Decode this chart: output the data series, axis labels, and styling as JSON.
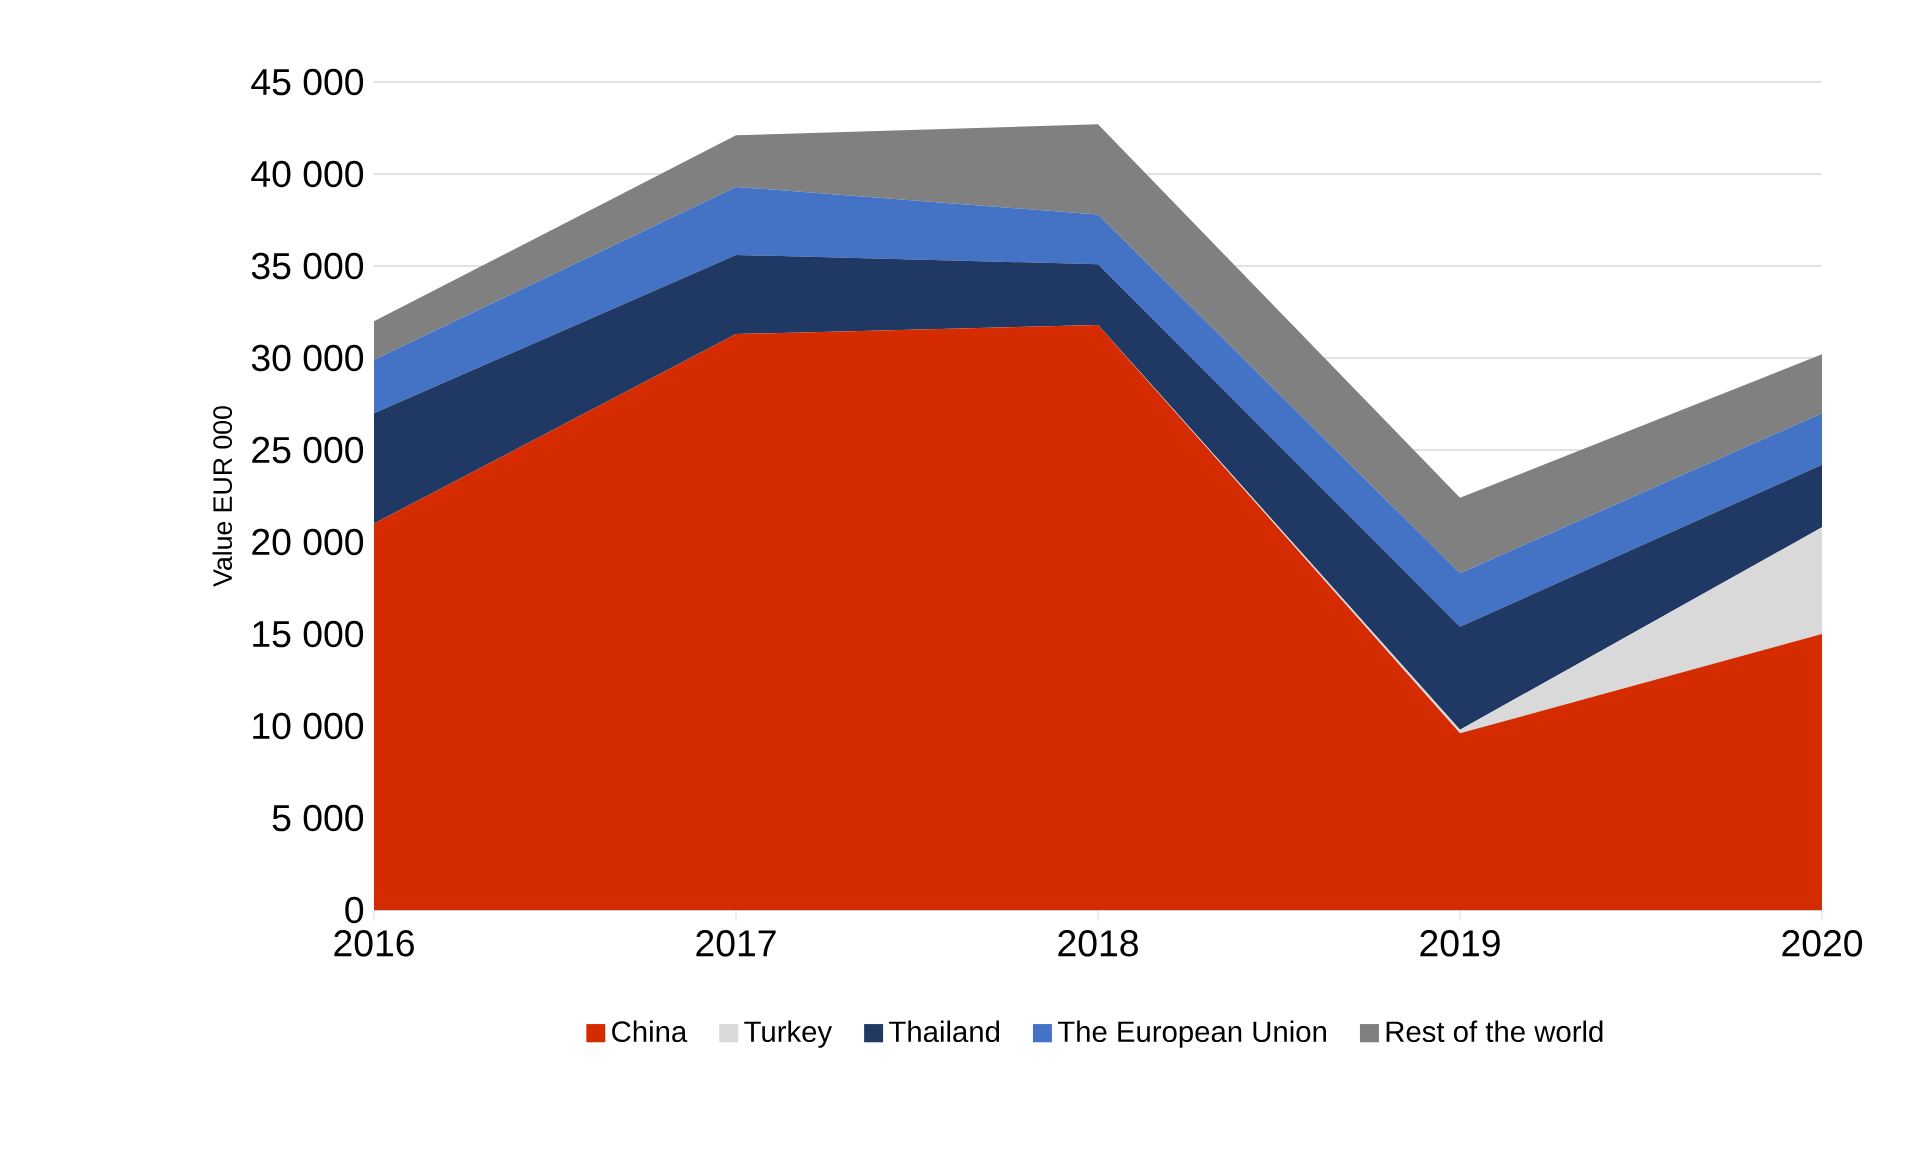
{
  "chart_data": {
    "type": "area",
    "stacked": true,
    "ylabel": "Value EUR 000",
    "categories": [
      "2016",
      "2017",
      "2018",
      "2019",
      "2020"
    ],
    "series": [
      {
        "name": "China",
        "color": "#d52b00",
        "values": [
          21000,
          31300,
          31800,
          9600,
          15000
        ]
      },
      {
        "name": "Turkey",
        "color": "#d9d9d9",
        "values": [
          0,
          0,
          0,
          200,
          5800
        ]
      },
      {
        "name": "Thailand",
        "color": "#203864",
        "values": [
          6000,
          4300,
          3300,
          5600,
          3400
        ]
      },
      {
        "name": "The European Union",
        "color": "#4472c4",
        "values": [
          2900,
          3700,
          2700,
          2900,
          2800
        ]
      },
      {
        "name": "Rest of the world",
        "color": "#808080",
        "values": [
          2100,
          2800,
          4900,
          4100,
          3200
        ]
      }
    ],
    "ylim": [
      0,
      45000
    ],
    "yticks": [
      {
        "value": 0,
        "label": "0"
      },
      {
        "value": 5000,
        "label": "5 000"
      },
      {
        "value": 10000,
        "label": "10 000"
      },
      {
        "value": 15000,
        "label": "15 000"
      },
      {
        "value": 20000,
        "label": "20 000"
      },
      {
        "value": 25000,
        "label": "25 000"
      },
      {
        "value": 30000,
        "label": "30 000"
      },
      {
        "value": 35000,
        "label": "35 000"
      },
      {
        "value": 40000,
        "label": "40 000"
      },
      {
        "value": 45000,
        "label": "45 000"
      }
    ],
    "grid": "y",
    "legend": "bottom"
  }
}
